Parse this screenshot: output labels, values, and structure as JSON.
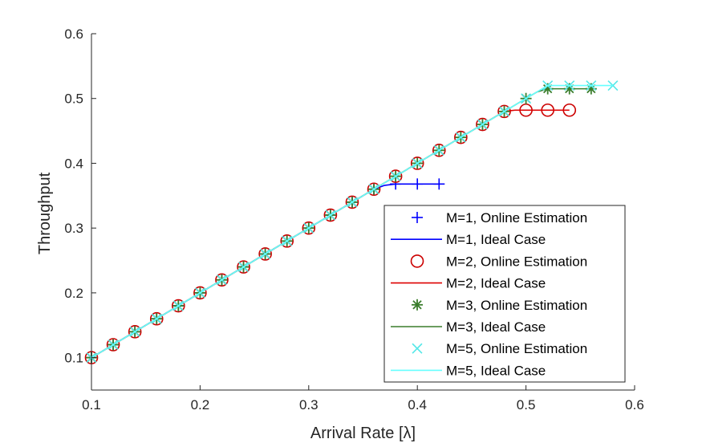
{
  "chart_data": {
    "type": "line",
    "xlabel": "Arrival Rate [λ]",
    "ylabel": "Throughput",
    "xlim": [
      0.1,
      0.6
    ],
    "ylim": [
      0.05,
      0.6
    ],
    "xticks": [
      0.1,
      0.2,
      0.3,
      0.4,
      0.5,
      0.6
    ],
    "xtick_labels": [
      "0.1",
      "0.2",
      "0.3",
      "0.4",
      "0.5",
      "0.6"
    ],
    "yticks": [
      0.1,
      0.2,
      0.3,
      0.4,
      0.5,
      0.6
    ],
    "ytick_labels": [
      "0.1",
      "0.2",
      "0.3",
      "0.4",
      "0.5",
      "0.6"
    ],
    "grid": false,
    "legend_position": "bottom-right",
    "series": [
      {
        "name": "M=1, Online Estimation",
        "style": "marker",
        "marker": "plus",
        "color": "#0000ff",
        "x": [
          0.1,
          0.12,
          0.14,
          0.16,
          0.18,
          0.2,
          0.22,
          0.24,
          0.26,
          0.28,
          0.3,
          0.32,
          0.34,
          0.36,
          0.38,
          0.4,
          0.42
        ],
        "y": [
          0.1,
          0.12,
          0.14,
          0.16,
          0.18,
          0.2,
          0.22,
          0.24,
          0.26,
          0.28,
          0.3,
          0.32,
          0.34,
          0.36,
          0.368,
          0.368,
          0.368
        ]
      },
      {
        "name": "M=1, Ideal Case",
        "style": "line",
        "color": "#0000ff",
        "x": [
          0.1,
          0.12,
          0.14,
          0.16,
          0.18,
          0.2,
          0.22,
          0.24,
          0.26,
          0.28,
          0.3,
          0.32,
          0.34,
          0.36,
          0.37,
          0.38,
          0.4,
          0.42
        ],
        "y": [
          0.1,
          0.12,
          0.14,
          0.16,
          0.18,
          0.2,
          0.22,
          0.24,
          0.26,
          0.28,
          0.3,
          0.32,
          0.34,
          0.36,
          0.366,
          0.368,
          0.368,
          0.368
        ]
      },
      {
        "name": "M=2, Online Estimation",
        "style": "marker",
        "marker": "circle",
        "color": "#cc0000",
        "x": [
          0.1,
          0.12,
          0.14,
          0.16,
          0.18,
          0.2,
          0.22,
          0.24,
          0.26,
          0.28,
          0.3,
          0.32,
          0.34,
          0.36,
          0.38,
          0.4,
          0.42,
          0.44,
          0.46,
          0.48,
          0.5,
          0.52,
          0.54
        ],
        "y": [
          0.1,
          0.12,
          0.14,
          0.16,
          0.18,
          0.2,
          0.22,
          0.24,
          0.26,
          0.28,
          0.3,
          0.32,
          0.34,
          0.36,
          0.38,
          0.4,
          0.42,
          0.44,
          0.46,
          0.48,
          0.482,
          0.482,
          0.482
        ]
      },
      {
        "name": "M=2, Ideal Case",
        "style": "line",
        "color": "#dd0000",
        "x": [
          0.1,
          0.48,
          0.49,
          0.5,
          0.52,
          0.54
        ],
        "y": [
          0.1,
          0.48,
          0.482,
          0.482,
          0.482,
          0.482
        ]
      },
      {
        "name": "M=3, Online Estimation",
        "style": "marker",
        "marker": "asterisk",
        "color": "#3a7d2c",
        "x": [
          0.1,
          0.12,
          0.14,
          0.16,
          0.18,
          0.2,
          0.22,
          0.24,
          0.26,
          0.28,
          0.3,
          0.32,
          0.34,
          0.36,
          0.38,
          0.4,
          0.42,
          0.44,
          0.46,
          0.48,
          0.5,
          0.52,
          0.54,
          0.56
        ],
        "y": [
          0.1,
          0.12,
          0.14,
          0.16,
          0.18,
          0.2,
          0.22,
          0.24,
          0.26,
          0.28,
          0.3,
          0.32,
          0.34,
          0.36,
          0.38,
          0.4,
          0.42,
          0.44,
          0.46,
          0.48,
          0.5,
          0.515,
          0.515,
          0.515
        ]
      },
      {
        "name": "M=3, Ideal Case",
        "style": "line",
        "color": "#3a7d2c",
        "x": [
          0.1,
          0.5,
          0.51,
          0.52,
          0.54,
          0.56
        ],
        "y": [
          0.1,
          0.5,
          0.51,
          0.515,
          0.515,
          0.515
        ]
      },
      {
        "name": "M=5, Online Estimation",
        "style": "marker",
        "marker": "cross",
        "color": "#55e8e8",
        "x": [
          0.1,
          0.12,
          0.14,
          0.16,
          0.18,
          0.2,
          0.22,
          0.24,
          0.26,
          0.28,
          0.3,
          0.32,
          0.34,
          0.36,
          0.38,
          0.4,
          0.42,
          0.44,
          0.46,
          0.48,
          0.5,
          0.52,
          0.54,
          0.56,
          0.58
        ],
        "y": [
          0.1,
          0.12,
          0.14,
          0.16,
          0.18,
          0.2,
          0.22,
          0.24,
          0.26,
          0.28,
          0.3,
          0.32,
          0.34,
          0.36,
          0.38,
          0.4,
          0.42,
          0.44,
          0.46,
          0.48,
          0.5,
          0.52,
          0.52,
          0.52,
          0.52
        ]
      },
      {
        "name": "M=5, Ideal Case",
        "style": "line",
        "color": "#66ffff",
        "x": [
          0.1,
          0.52,
          0.54,
          0.56,
          0.58
        ],
        "y": [
          0.1,
          0.52,
          0.52,
          0.52,
          0.52
        ]
      }
    ]
  }
}
